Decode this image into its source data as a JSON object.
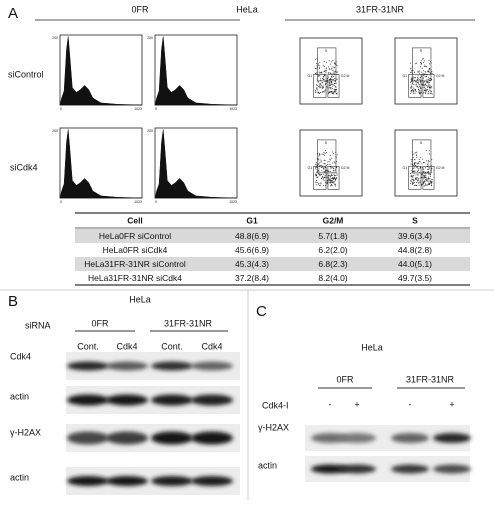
{
  "panel_a": {
    "label": "A",
    "title": "HeLa",
    "groups": [
      "0FR",
      "31FR-31NR"
    ],
    "rows": [
      "siControl",
      "siCdk4"
    ],
    "histogram_axis": {
      "y_top": "200",
      "x_min": "0",
      "x_max": "1023"
    },
    "scatter_gates": [
      "S",
      "G1",
      "G2 M"
    ],
    "table": {
      "header": [
        "Cell",
        "G1",
        "G2/M",
        "S"
      ],
      "rows": [
        [
          "HeLa0FR siControl",
          "48.8(6.9)",
          "5.7(1.8)",
          "39.6(3.4)"
        ],
        [
          "HeLa0FR siCdk4",
          "45.6(6.9)",
          "6.2(2.0)",
          "44.8(2.8)"
        ],
        [
          "HeLa31FR-31NR siControl",
          "45.3(4.3)",
          "6.8(2.3)",
          "44.0(5.1)"
        ],
        [
          "HeLa31FR-31NR siCdk4",
          "37.2(8.4)",
          "8.2(4.0)",
          "49.7(3.5)"
        ]
      ]
    }
  },
  "panel_b": {
    "label": "B",
    "title": "HeLa",
    "row_header": "siRNA",
    "groups": [
      "0FR",
      "31FR-31NR"
    ],
    "lanes": [
      "Cont.",
      "Cdk4",
      "Cont.",
      "Cdk4"
    ],
    "blots": [
      "Cdk4",
      "actin",
      "γ-H2AX",
      "actin"
    ]
  },
  "panel_c": {
    "label": "C",
    "title": "HeLa",
    "groups": [
      "0FR",
      "31FR-31NR"
    ],
    "treatment": "Cdk4-I",
    "lanes": [
      "-",
      "+",
      "-",
      "+"
    ],
    "blots": [
      "γ-H2AX",
      "actin"
    ]
  }
}
